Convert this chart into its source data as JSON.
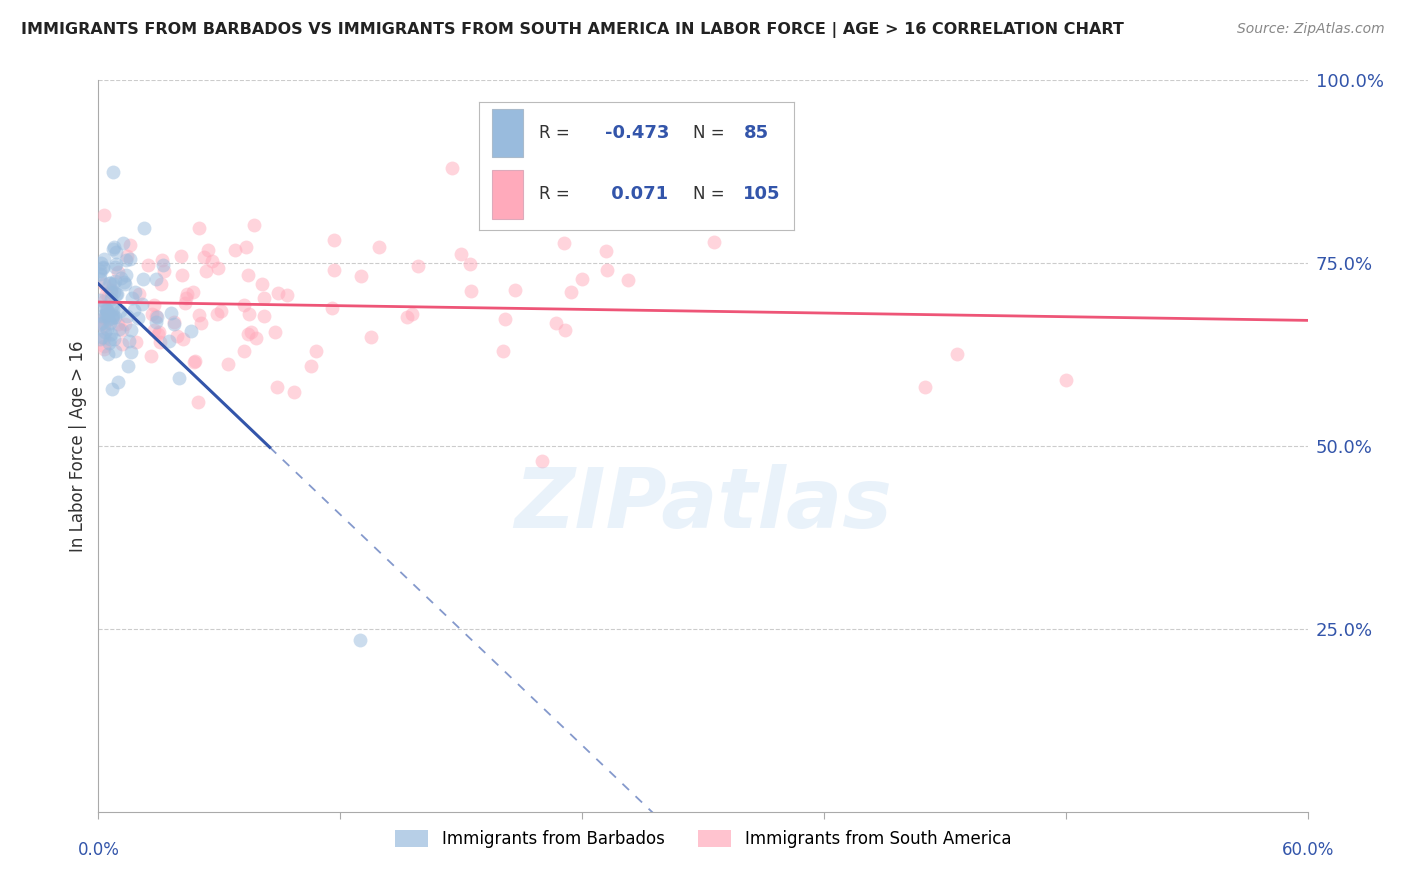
{
  "title": "IMMIGRANTS FROM BARBADOS VS IMMIGRANTS FROM SOUTH AMERICA IN LABOR FORCE | AGE > 16 CORRELATION CHART",
  "source": "Source: ZipAtlas.com",
  "ylabel": "In Labor Force | Age > 16",
  "x_min": 0.0,
  "x_max": 0.6,
  "y_min": 0.0,
  "y_max": 1.0,
  "y_ticks": [
    0.0,
    0.25,
    0.5,
    0.75,
    1.0
  ],
  "y_tick_labels": [
    "",
    "25.0%",
    "50.0%",
    "75.0%",
    "100.0%"
  ],
  "x_tick_positions": [
    0.0,
    0.12,
    0.24,
    0.36,
    0.48,
    0.6
  ],
  "barbados_R": -0.473,
  "barbados_N": 85,
  "south_america_R": 0.071,
  "south_america_N": 105,
  "barbados_color": "#99BBDD",
  "south_america_color": "#FFAABB",
  "barbados_line_color": "#3355AA",
  "south_america_line_color": "#EE5577",
  "legend_text_color": "#3355AA",
  "title_color": "#222222",
  "axis_label_color": "#3355AA",
  "tick_color": "#3355AA",
  "grid_color": "#CCCCCC",
  "legend_label_blue": "Immigrants from Barbados",
  "legend_label_pink": "Immigrants from South America",
  "watermark": "ZIPatlas",
  "watermark_color": "#AACCEE",
  "watermark_alpha": 0.25,
  "scatter_size": 100,
  "scatter_alpha": 0.5
}
